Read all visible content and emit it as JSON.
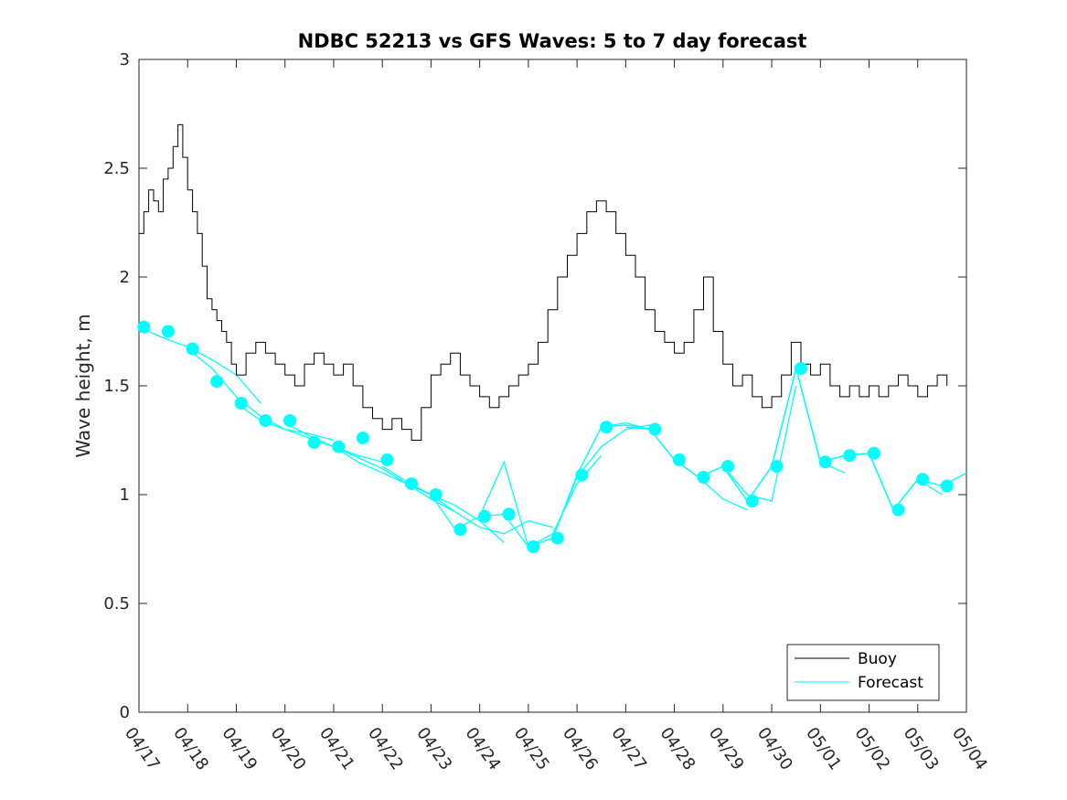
{
  "chart_data": {
    "type": "line",
    "title": "NDBC 52213 vs GFS Waves: 5 to 7 day forecast",
    "xlabel": "",
    "ylabel": "Wave height, m",
    "ylim": [
      0,
      3
    ],
    "yticks": [
      "0",
      "0.5",
      "1",
      "1.5",
      "2",
      "2.5",
      "3"
    ],
    "xlim": [
      "04/17",
      "05/04"
    ],
    "xticks": [
      "04/17",
      "04/18",
      "04/19",
      "04/20",
      "04/21",
      "04/22",
      "04/23",
      "04/24",
      "04/25",
      "04/26",
      "04/27",
      "04/28",
      "04/29",
      "04/30",
      "05/01",
      "05/02",
      "05/03",
      "05/04"
    ],
    "grid": false,
    "legend": {
      "placement": "bottom-right",
      "entries": [
        "Buoy",
        "Forecast"
      ]
    },
    "colors": {
      "buoy": "#000000",
      "forecast": "#00ffff"
    },
    "buoy": {
      "name": "Buoy",
      "x_days_from_0417": [
        0.0,
        0.1,
        0.2,
        0.3,
        0.4,
        0.5,
        0.6,
        0.7,
        0.8,
        0.9,
        1.0,
        1.1,
        1.2,
        1.3,
        1.4,
        1.5,
        1.6,
        1.7,
        1.8,
        1.9,
        2.0,
        2.2,
        2.4,
        2.6,
        2.8,
        3.0,
        3.2,
        3.4,
        3.6,
        3.8,
        4.0,
        4.2,
        4.4,
        4.6,
        4.8,
        5.0,
        5.2,
        5.4,
        5.6,
        5.8,
        6.0,
        6.2,
        6.4,
        6.6,
        6.8,
        7.0,
        7.2,
        7.4,
        7.6,
        7.8,
        8.0,
        8.2,
        8.4,
        8.6,
        8.8,
        9.0,
        9.2,
        9.4,
        9.6,
        9.8,
        10.0,
        10.2,
        10.4,
        10.6,
        10.8,
        11.0,
        11.2,
        11.4,
        11.6,
        11.8,
        12.0,
        12.2,
        12.4,
        12.6,
        12.8,
        13.0,
        13.2,
        13.4,
        13.6,
        13.8,
        14.0,
        14.2,
        14.4,
        14.6,
        14.8,
        15.0,
        15.2,
        15.4,
        15.6,
        15.8,
        16.0,
        16.2,
        16.4,
        16.6
      ],
      "values": [
        2.2,
        2.3,
        2.4,
        2.35,
        2.3,
        2.45,
        2.5,
        2.6,
        2.7,
        2.55,
        2.4,
        2.3,
        2.2,
        2.05,
        1.9,
        1.85,
        1.8,
        1.75,
        1.7,
        1.6,
        1.55,
        1.65,
        1.7,
        1.65,
        1.6,
        1.55,
        1.5,
        1.6,
        1.65,
        1.6,
        1.55,
        1.6,
        1.5,
        1.4,
        1.35,
        1.3,
        1.35,
        1.3,
        1.25,
        1.4,
        1.55,
        1.6,
        1.65,
        1.55,
        1.5,
        1.45,
        1.4,
        1.45,
        1.5,
        1.55,
        1.6,
        1.7,
        1.85,
        2.0,
        2.1,
        2.2,
        2.3,
        2.35,
        2.3,
        2.2,
        2.1,
        2.0,
        1.85,
        1.75,
        1.7,
        1.65,
        1.7,
        1.85,
        2.0,
        1.75,
        1.6,
        1.5,
        1.55,
        1.45,
        1.4,
        1.45,
        1.55,
        1.7,
        1.6,
        1.55,
        1.6,
        1.5,
        1.45,
        1.5,
        1.45,
        1.5,
        1.45,
        1.5,
        1.55,
        1.5,
        1.45,
        1.5,
        1.55,
        1.5
      ]
    },
    "forecast_runs": [
      {
        "x_days_from_0417": [
          0.0,
          0.5,
          1.0,
          1.5,
          2.0,
          2.5
        ],
        "values": [
          1.77,
          1.72,
          1.68,
          1.62,
          1.55,
          1.42
        ]
      },
      {
        "x_days_from_0417": [
          1.0,
          1.5,
          2.0,
          2.5,
          3.0,
          3.5,
          4.0
        ],
        "values": [
          1.67,
          1.58,
          1.45,
          1.36,
          1.3,
          1.28,
          1.25
        ]
      },
      {
        "x_days_from_0417": [
          2.0,
          2.5,
          3.0,
          3.5,
          4.0,
          4.5,
          5.0
        ],
        "values": [
          1.42,
          1.34,
          1.3,
          1.26,
          1.22,
          1.18,
          1.15
        ]
      },
      {
        "x_days_from_0417": [
          3.0,
          3.5,
          4.0,
          4.5,
          5.0,
          5.5,
          6.0,
          6.5
        ],
        "values": [
          1.33,
          1.27,
          1.22,
          1.17,
          1.12,
          1.05,
          0.98,
          0.92
        ]
      },
      {
        "x_days_from_0417": [
          4.0,
          4.5,
          5.0,
          5.5,
          6.0,
          6.5,
          7.0,
          7.5
        ],
        "values": [
          1.22,
          1.15,
          1.1,
          1.05,
          1.0,
          0.95,
          0.88,
          0.78
        ]
      },
      {
        "x_days_from_0417": [
          5.0,
          5.5,
          6.0,
          6.5,
          7.0,
          7.5,
          8.0,
          8.5
        ],
        "values": [
          1.13,
          1.06,
          1.0,
          0.92,
          0.85,
          0.82,
          0.88,
          0.85
        ]
      },
      {
        "x_days_from_0417": [
          6.0,
          6.5,
          7.0,
          7.5,
          8.0,
          8.5,
          9.0,
          9.5
        ],
        "values": [
          1.0,
          0.84,
          0.9,
          1.15,
          0.76,
          0.82,
          1.05,
          1.18
        ]
      },
      {
        "x_days_from_0417": [
          7.0,
          7.5,
          8.0,
          8.5,
          9.0,
          9.5,
          10.0,
          10.5
        ],
        "values": [
          0.9,
          0.91,
          0.76,
          0.8,
          1.08,
          1.22,
          1.3,
          1.32
        ]
      },
      {
        "x_days_from_0417": [
          8.0,
          8.5,
          9.0,
          9.5,
          10.0,
          10.5,
          11.0
        ],
        "values": [
          0.76,
          0.8,
          1.09,
          1.31,
          1.33,
          1.3,
          1.16
        ]
      },
      {
        "x_days_from_0417": [
          9.0,
          9.5,
          10.0,
          10.5,
          11.0,
          11.5,
          12.0,
          12.5
        ],
        "values": [
          1.09,
          1.31,
          1.32,
          1.3,
          1.16,
          1.08,
          0.98,
          0.93
        ]
      },
      {
        "x_days_from_0417": [
          10.0,
          10.5,
          11.0,
          11.5,
          12.0,
          12.5,
          13.0,
          13.5
        ],
        "values": [
          1.31,
          1.3,
          1.16,
          1.08,
          1.13,
          1.0,
          0.97,
          1.5
        ]
      },
      {
        "x_days_from_0417": [
          11.0,
          11.5,
          12.0,
          12.5,
          13.0,
          13.5,
          14.0,
          14.5
        ],
        "values": [
          1.16,
          1.08,
          1.13,
          0.97,
          1.13,
          1.58,
          1.15,
          1.1
        ]
      },
      {
        "x_days_from_0417": [
          12.0,
          12.5,
          13.0,
          13.5,
          14.0,
          14.5,
          15.0,
          15.5
        ],
        "values": [
          1.13,
          0.97,
          1.13,
          1.58,
          1.15,
          1.18,
          1.19,
          0.93
        ]
      },
      {
        "x_days_from_0417": [
          13.0,
          13.5,
          14.0,
          14.5,
          15.0,
          15.5,
          16.0,
          16.5
        ],
        "values": [
          1.13,
          1.58,
          1.15,
          1.18,
          1.19,
          0.93,
          1.07,
          1.0
        ]
      },
      {
        "x_days_from_0417": [
          14.0,
          14.5,
          15.0,
          15.5,
          16.0,
          16.5,
          17.0
        ],
        "values": [
          1.15,
          1.18,
          1.19,
          0.93,
          1.07,
          1.04,
          1.1
        ]
      }
    ],
    "forecast_markers": {
      "x_days_from_0417": [
        0.1,
        0.6,
        1.1,
        1.6,
        2.1,
        2.6,
        3.1,
        3.6,
        4.1,
        4.6,
        5.1,
        5.6,
        6.1,
        6.6,
        7.1,
        7.6,
        8.1,
        8.6,
        9.1,
        9.6,
        10.6,
        11.1,
        11.6,
        12.1,
        12.6,
        13.1,
        13.6,
        14.1,
        14.6,
        15.1,
        15.6,
        16.1,
        16.6
      ],
      "values": [
        1.77,
        1.75,
        1.67,
        1.52,
        1.42,
        1.34,
        1.34,
        1.24,
        1.22,
        1.26,
        1.16,
        1.05,
        1.0,
        0.84,
        0.9,
        0.91,
        0.76,
        0.8,
        1.09,
        1.31,
        1.3,
        1.16,
        1.08,
        1.13,
        0.97,
        1.13,
        1.58,
        1.15,
        1.18,
        1.19,
        0.93,
        1.07,
        1.04
      ]
    }
  }
}
